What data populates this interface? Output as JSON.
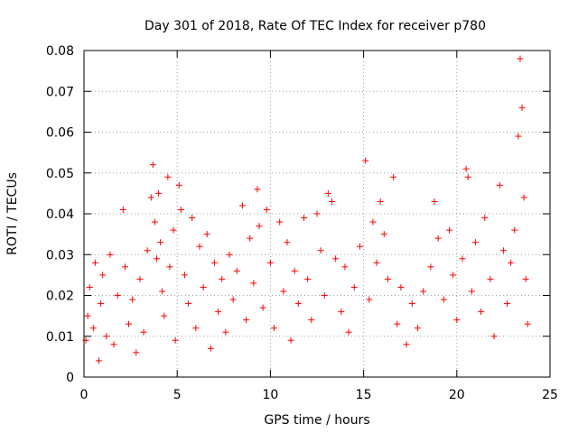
{
  "chart_data": {
    "type": "scatter",
    "title": "Day 301 of 2018, Rate Of TEC Index for receiver p780",
    "xlabel": "GPS time / hours",
    "ylabel": "ROTI / TECUs",
    "xlim": [
      0,
      25
    ],
    "ylim": [
      0,
      0.08
    ],
    "grid": true,
    "x_ticks": [
      0,
      5,
      10,
      15,
      20,
      25
    ],
    "x_tick_labels": [
      "0",
      "5",
      "10",
      "15",
      "20",
      "25"
    ],
    "y_ticks": [
      0,
      0.01,
      0.02,
      0.03,
      0.04,
      0.05,
      0.06,
      0.07,
      0.08
    ],
    "y_tick_labels": [
      "0",
      "0.01",
      "0.02",
      "0.03",
      "0.04",
      "0.05",
      "0.06",
      "0.07",
      "0.08"
    ],
    "marker": "+",
    "marker_color": "#ff0000",
    "series": [
      {
        "name": "ROTI",
        "points": [
          [
            0.1,
            0.009
          ],
          [
            0.2,
            0.015
          ],
          [
            0.3,
            0.022
          ],
          [
            0.5,
            0.012
          ],
          [
            0.6,
            0.028
          ],
          [
            0.8,
            0.004
          ],
          [
            0.9,
            0.018
          ],
          [
            1.0,
            0.025
          ],
          [
            1.2,
            0.01
          ],
          [
            1.4,
            0.03
          ],
          [
            1.6,
            0.008
          ],
          [
            1.8,
            0.02
          ],
          [
            2.1,
            0.041
          ],
          [
            2.2,
            0.027
          ],
          [
            2.4,
            0.013
          ],
          [
            2.6,
            0.019
          ],
          [
            2.8,
            0.006
          ],
          [
            3.0,
            0.024
          ],
          [
            3.2,
            0.011
          ],
          [
            3.4,
            0.031
          ],
          [
            3.6,
            0.044
          ],
          [
            3.7,
            0.052
          ],
          [
            3.8,
            0.038
          ],
          [
            3.9,
            0.029
          ],
          [
            4.0,
            0.045
          ],
          [
            4.1,
            0.033
          ],
          [
            4.2,
            0.021
          ],
          [
            4.3,
            0.015
          ],
          [
            4.5,
            0.049
          ],
          [
            4.6,
            0.027
          ],
          [
            4.8,
            0.036
          ],
          [
            4.9,
            0.009
          ],
          [
            5.1,
            0.047
          ],
          [
            5.2,
            0.041
          ],
          [
            5.4,
            0.025
          ],
          [
            5.6,
            0.018
          ],
          [
            5.8,
            0.039
          ],
          [
            6.0,
            0.012
          ],
          [
            6.2,
            0.032
          ],
          [
            6.4,
            0.022
          ],
          [
            6.6,
            0.035
          ],
          [
            6.8,
            0.007
          ],
          [
            7.0,
            0.028
          ],
          [
            7.2,
            0.016
          ],
          [
            7.4,
            0.024
          ],
          [
            7.6,
            0.011
          ],
          [
            7.8,
            0.03
          ],
          [
            8.0,
            0.019
          ],
          [
            8.2,
            0.026
          ],
          [
            8.5,
            0.042
          ],
          [
            8.7,
            0.014
          ],
          [
            8.9,
            0.034
          ],
          [
            9.1,
            0.023
          ],
          [
            9.3,
            0.046
          ],
          [
            9.4,
            0.037
          ],
          [
            9.6,
            0.017
          ],
          [
            9.8,
            0.041
          ],
          [
            10.0,
            0.028
          ],
          [
            10.2,
            0.012
          ],
          [
            10.5,
            0.038
          ],
          [
            10.7,
            0.021
          ],
          [
            10.9,
            0.033
          ],
          [
            11.1,
            0.009
          ],
          [
            11.3,
            0.026
          ],
          [
            11.5,
            0.018
          ],
          [
            11.8,
            0.039
          ],
          [
            12.0,
            0.024
          ],
          [
            12.2,
            0.014
          ],
          [
            12.5,
            0.04
          ],
          [
            12.7,
            0.031
          ],
          [
            12.9,
            0.02
          ],
          [
            13.1,
            0.045
          ],
          [
            13.3,
            0.043
          ],
          [
            13.5,
            0.029
          ],
          [
            13.8,
            0.016
          ],
          [
            14.0,
            0.027
          ],
          [
            14.2,
            0.011
          ],
          [
            14.5,
            0.022
          ],
          [
            14.8,
            0.032
          ],
          [
            15.1,
            0.053
          ],
          [
            15.3,
            0.019
          ],
          [
            15.5,
            0.038
          ],
          [
            15.7,
            0.028
          ],
          [
            15.9,
            0.043
          ],
          [
            16.1,
            0.035
          ],
          [
            16.3,
            0.024
          ],
          [
            16.6,
            0.049
          ],
          [
            16.8,
            0.013
          ],
          [
            17.0,
            0.022
          ],
          [
            17.3,
            0.008
          ],
          [
            17.6,
            0.018
          ],
          [
            17.9,
            0.012
          ],
          [
            18.2,
            0.021
          ],
          [
            18.6,
            0.027
          ],
          [
            18.8,
            0.043
          ],
          [
            19.0,
            0.034
          ],
          [
            19.3,
            0.019
          ],
          [
            19.6,
            0.036
          ],
          [
            19.8,
            0.025
          ],
          [
            20.0,
            0.014
          ],
          [
            20.3,
            0.029
          ],
          [
            20.5,
            0.051
          ],
          [
            20.6,
            0.049
          ],
          [
            20.8,
            0.021
          ],
          [
            21.0,
            0.033
          ],
          [
            21.3,
            0.016
          ],
          [
            21.5,
            0.039
          ],
          [
            21.8,
            0.024
          ],
          [
            22.0,
            0.01
          ],
          [
            22.3,
            0.047
          ],
          [
            22.5,
            0.031
          ],
          [
            22.7,
            0.018
          ],
          [
            22.9,
            0.028
          ],
          [
            23.1,
            0.036
          ],
          [
            23.3,
            0.059
          ],
          [
            23.4,
            0.078
          ],
          [
            23.5,
            0.066
          ],
          [
            23.6,
            0.044
          ],
          [
            23.7,
            0.024
          ],
          [
            23.8,
            0.013
          ]
        ]
      }
    ]
  }
}
